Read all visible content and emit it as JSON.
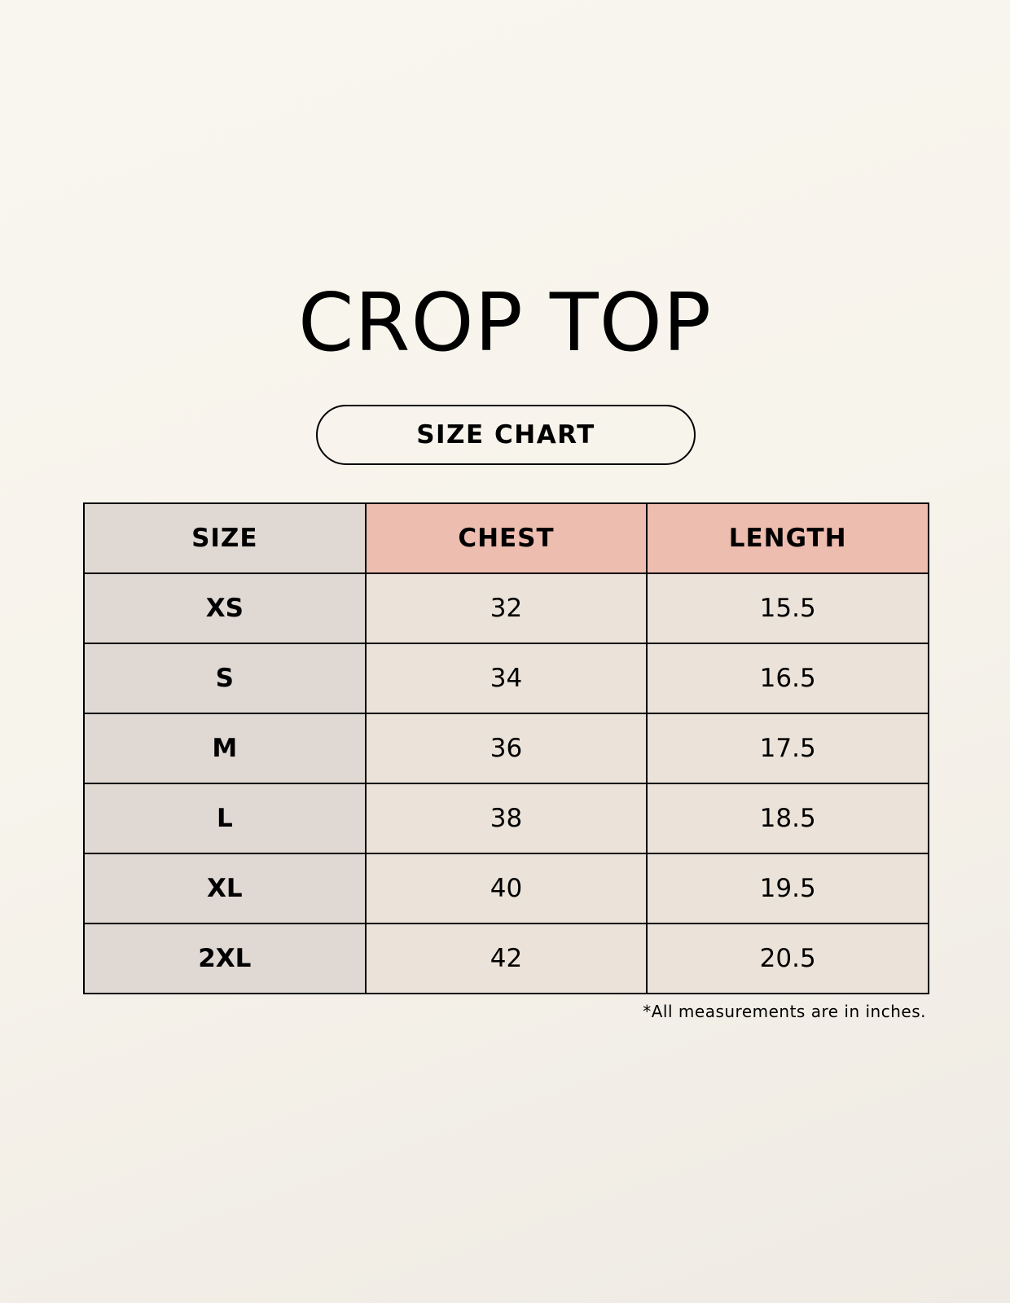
{
  "title": "CROP TOP",
  "subtitle": "SIZE CHART",
  "table": {
    "headers": [
      "SIZE",
      "CHEST",
      "LENGTH"
    ],
    "rows": [
      [
        "XS",
        "32",
        "15.5"
      ],
      [
        "S",
        "34",
        "16.5"
      ],
      [
        "M",
        "36",
        "17.5"
      ],
      [
        "L",
        "38",
        "18.5"
      ],
      [
        "XL",
        "40",
        "19.5"
      ],
      [
        "2XL",
        "42",
        "20.5"
      ]
    ]
  },
  "footnote": "*All measurements are in inches.",
  "colors": {
    "size_column": "#e0d9d3",
    "header_accent": "#edbdb0",
    "value_cells": "#ebe3d9"
  }
}
